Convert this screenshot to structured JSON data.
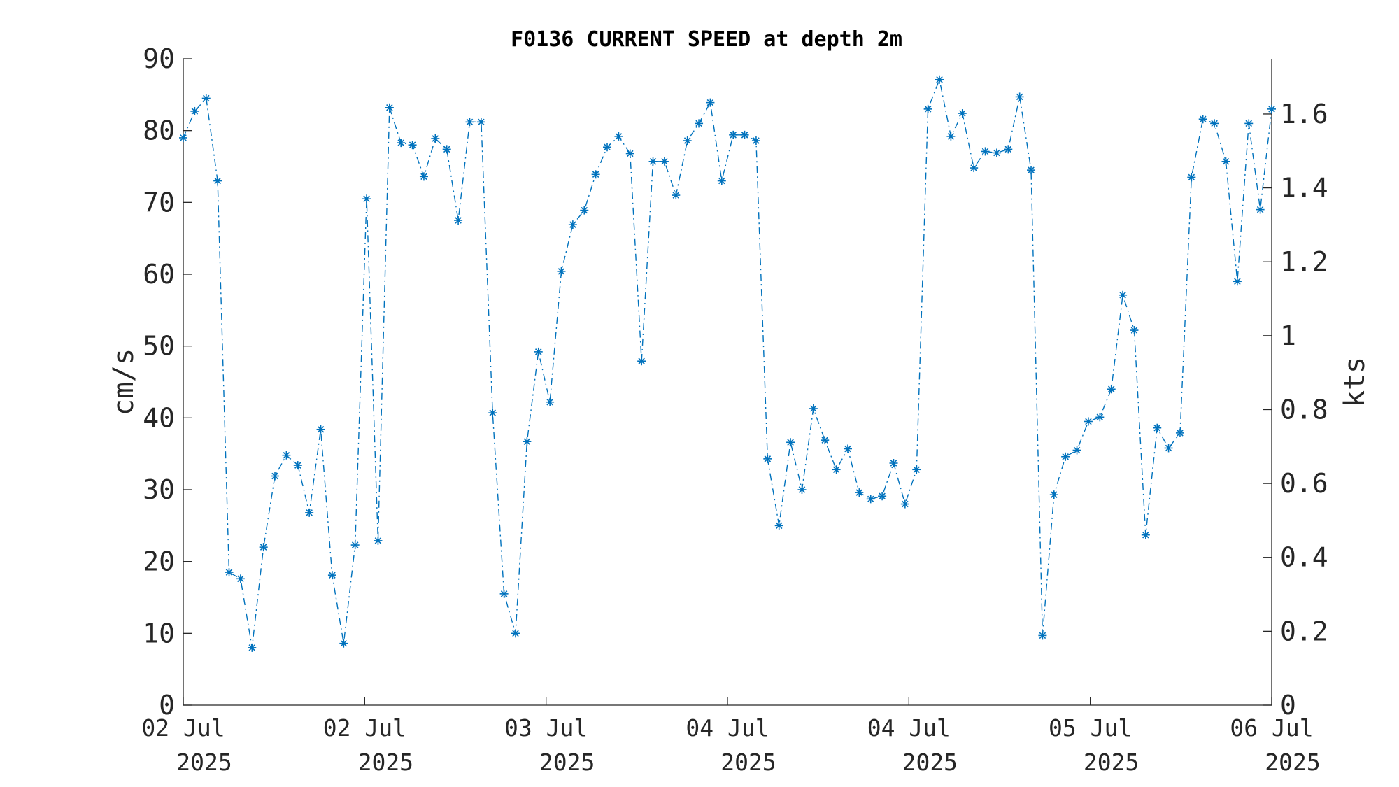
{
  "chart_data": {
    "type": "line",
    "title": "F0136 CURRENT SPEED at depth 2m",
    "ylabel": "cm/s",
    "y2label": "kts",
    "ylim": [
      0,
      90
    ],
    "y2lim": [
      0,
      1.7495
    ],
    "yticks": [
      0,
      10,
      20,
      30,
      40,
      50,
      60,
      70,
      80,
      90
    ],
    "y2ticks": [
      {
        "value": 0,
        "label": "0"
      },
      {
        "value": 0.2,
        "label": "0.2"
      },
      {
        "value": 0.4,
        "label": "0.4"
      },
      {
        "value": 0.6,
        "label": "0.6"
      },
      {
        "value": 0.8,
        "label": "0.8"
      },
      {
        "value": 1.0,
        "label": "1"
      },
      {
        "value": 1.2,
        "label": "1.2"
      },
      {
        "value": 1.4,
        "label": "1.4"
      },
      {
        "value": 1.6,
        "label": "1.6"
      }
    ],
    "xlim": [
      0,
      6
    ],
    "xticks": [
      {
        "pos": 0,
        "line1": "02 Jul",
        "line2": "2025"
      },
      {
        "pos": 1,
        "line1": "02 Jul",
        "line2": "2025"
      },
      {
        "pos": 2,
        "line1": "03 Jul",
        "line2": "2025"
      },
      {
        "pos": 3,
        "line1": "04 Jul",
        "line2": "2025"
      },
      {
        "pos": 4,
        "line1": "04 Jul",
        "line2": "2025"
      },
      {
        "pos": 5,
        "line1": "05 Jul",
        "line2": "2025"
      },
      {
        "pos": 6,
        "line1": "06 Jul",
        "line2": "2025"
      }
    ],
    "grid": false,
    "legend": "none",
    "series": [
      {
        "color": "#0072BD",
        "marker": "asterisk",
        "linestyle": "dash-dot",
        "values": [
          79,
          82.7,
          84.5,
          73,
          18.5,
          17.6,
          8,
          22,
          31.9,
          34.8,
          33.4,
          26.8,
          38.4,
          18.1,
          8.6,
          22.3,
          70.5,
          22.9,
          83.2,
          78.3,
          78,
          73.6,
          78.9,
          77.4,
          67.5,
          81.2,
          81.2,
          40.7,
          15.5,
          10,
          36.7,
          49.2,
          42.2,
          60.4,
          66.9,
          68.9,
          73.9,
          77.7,
          79.2,
          76.8,
          47.9,
          75.7,
          75.7,
          71,
          78.6,
          81,
          83.9,
          73,
          79.4,
          79.4,
          78.6,
          34.3,
          25,
          36.6,
          30,
          41.3,
          36.9,
          32.8,
          35.7,
          29.6,
          28.7,
          29.1,
          33.7,
          28,
          32.8,
          83,
          87.1,
          79.2,
          82.4,
          74.8,
          77.1,
          76.9,
          77.4,
          84.7,
          74.5,
          9.7,
          29.3,
          34.6,
          35.5,
          39.5,
          40.1,
          44,
          57.1,
          52.2,
          23.7,
          38.6,
          35.8,
          37.9,
          73.5,
          81.6,
          81,
          75.7,
          59,
          81,
          69,
          83
        ]
      }
    ]
  }
}
